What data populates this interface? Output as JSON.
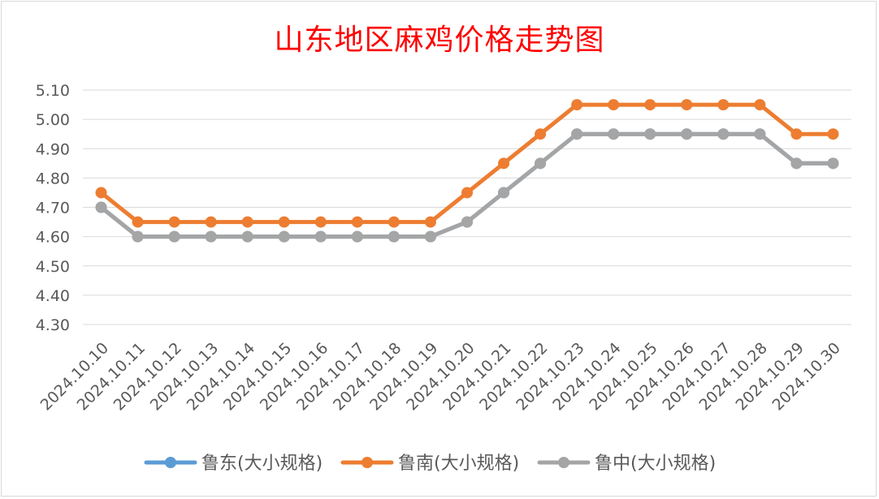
{
  "chart_data": {
    "type": "line",
    "title": "山东地区麻鸡价格走势图",
    "xlabel": "",
    "ylabel": "",
    "ylim": [
      4.3,
      5.1
    ],
    "y_ticks": [
      "5.10",
      "5.00",
      "4.90",
      "4.80",
      "4.70",
      "4.60",
      "4.50",
      "4.40",
      "4.30"
    ],
    "y_tick_values": [
      5.1,
      5.0,
      4.9,
      4.8,
      4.7,
      4.6,
      4.5,
      4.4,
      4.3
    ],
    "grid": true,
    "legend_position": "bottom",
    "categories": [
      "2024.10.10",
      "2024.10.11",
      "2024.10.12",
      "2024.10.13",
      "2024.10.14",
      "2024.10.15",
      "2024.10.16",
      "2024.10.17",
      "2024.10.18",
      "2024.10.19",
      "2024.10.20",
      "2024.10.21",
      "2024.10.22",
      "2024.10.23",
      "2024.10.24",
      "2024.10.25",
      "2024.10.26",
      "2024.10.27",
      "2024.10.28",
      "2024.10.29",
      "2024.10.30"
    ],
    "series": [
      {
        "name": "鲁东(大小规格)",
        "color": "#5b9bd5",
        "values": [
          4.7,
          4.6,
          4.6,
          4.6,
          4.6,
          4.6,
          4.6,
          4.6,
          4.6,
          4.6,
          4.65,
          4.75,
          4.85,
          4.95,
          4.95,
          4.95,
          4.95,
          4.95,
          4.95,
          4.85,
          4.85
        ]
      },
      {
        "name": "鲁南(大小规格)",
        "color": "#ed7d31",
        "values": [
          4.75,
          4.65,
          4.65,
          4.65,
          4.65,
          4.65,
          4.65,
          4.65,
          4.65,
          4.65,
          4.75,
          4.85,
          4.95,
          5.05,
          5.05,
          5.05,
          5.05,
          5.05,
          5.05,
          4.95,
          4.95
        ]
      },
      {
        "name": "鲁中(大小规格)",
        "color": "#a5a5a5",
        "values": [
          4.7,
          4.6,
          4.6,
          4.6,
          4.6,
          4.6,
          4.6,
          4.6,
          4.6,
          4.6,
          4.65,
          4.75,
          4.85,
          4.95,
          4.95,
          4.95,
          4.95,
          4.95,
          4.95,
          4.85,
          4.85
        ]
      }
    ]
  }
}
